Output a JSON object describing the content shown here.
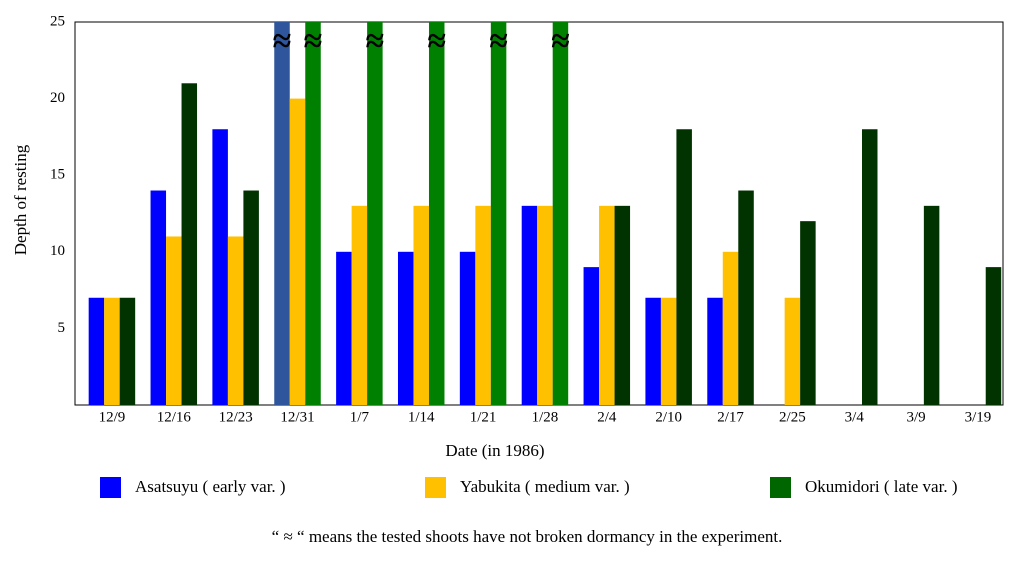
{
  "chart_data": {
    "type": "bar",
    "x_label": "Date (in 1986)",
    "y_label": "Depth of resting",
    "categories": [
      "12/9",
      "12/16",
      "12/23",
      "12/31",
      "1/7",
      "1/14",
      "1/21",
      "1/28",
      "2/4",
      "2/10",
      "2/17",
      "2/25",
      "3/4",
      "3/9",
      "3/19"
    ],
    "series": [
      {
        "name": "Asatsuyu ( early var. )",
        "color": "#0000ff",
        "colors": [
          "#0000ff",
          "#0000ff",
          "#0000ff",
          "#2f559c",
          "#0000ff",
          "#0000ff",
          "#0000ff",
          "#0000ff",
          "#0000ff",
          "#0000ff",
          "#0000ff",
          "#0000ff",
          "#0000ff",
          "#0000ff",
          "#0000ff"
        ],
        "values": [
          7,
          14,
          18,
          25,
          10,
          10,
          10,
          13,
          9,
          7,
          7,
          null,
          null,
          null,
          null
        ]
      },
      {
        "name": "Yabukita ( medium var. )",
        "color": "#ffc000",
        "values": [
          7,
          11,
          11,
          20,
          13,
          13,
          13,
          13,
          13,
          7,
          10,
          7,
          null,
          null,
          null
        ]
      },
      {
        "name": "Okumidori ( late var. )",
        "color": "#006600",
        "colors": [
          "#003300",
          "#003300",
          "#003300",
          "#008000",
          "#008000",
          "#008000",
          "#008000",
          "#008000",
          "#003300",
          "#003300",
          "#003300",
          "#003300",
          "#003300",
          "#003300",
          "#003300"
        ],
        "values": [
          7,
          21,
          14,
          25,
          25,
          25,
          25,
          25,
          13,
          18,
          14,
          12,
          18,
          13,
          9
        ]
      }
    ],
    "break_marks": [
      {
        "series": 0,
        "index": 3,
        "text": "≈"
      },
      {
        "series": 2,
        "index": 3,
        "text": "≈"
      },
      {
        "series": 2,
        "index": 4,
        "text": "≈"
      },
      {
        "series": 2,
        "index": 5,
        "text": "≈"
      },
      {
        "series": 2,
        "index": 6,
        "text": "≈"
      },
      {
        "series": 2,
        "index": 7,
        "text": "≈"
      }
    ],
    "note": "“ ≈ “ means the tested shoots have not broken dormancy in the experiment.",
    "ylim": [
      0,
      25
    ],
    "yticks": [
      5,
      10,
      15,
      20,
      25
    ],
    "grid": false,
    "legend": "bottom"
  }
}
